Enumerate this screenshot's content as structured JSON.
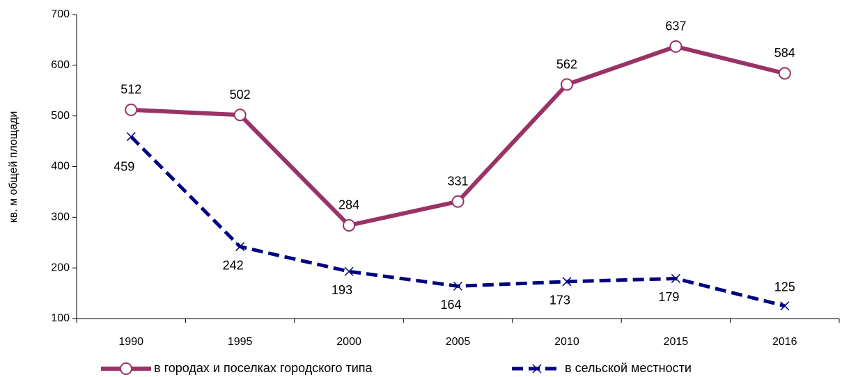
{
  "chart_data": {
    "type": "line",
    "y_label": "кв. м общей площади",
    "categories": [
      "1990",
      "1995",
      "2000",
      "2005",
      "2010",
      "2015",
      "2016"
    ],
    "series": [
      {
        "name": "в городах и поселках городского типа",
        "color": "#993366",
        "values": [
          512,
          502,
          284,
          331,
          562,
          637,
          584
        ]
      },
      {
        "name": "в сельской местности",
        "color": "#000080",
        "values": [
          459,
          242,
          193,
          164,
          173,
          179,
          125
        ]
      }
    ],
    "ylim": [
      100,
      700
    ],
    "yticks": [
      100,
      200,
      300,
      400,
      500,
      600,
      700
    ],
    "legend": "bottom"
  }
}
